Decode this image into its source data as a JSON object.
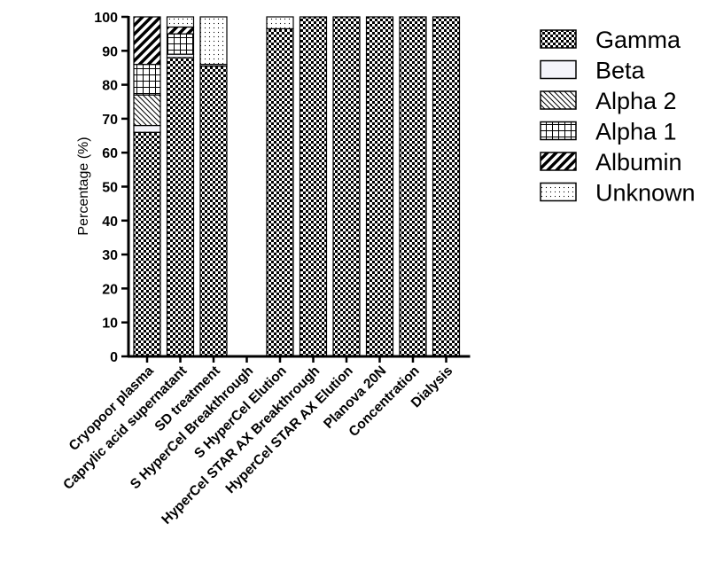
{
  "chart_data": {
    "type": "bar",
    "stacked": true,
    "ylabel": "Percentage (%)",
    "xlabel": "",
    "ylim": [
      0,
      100
    ],
    "yticks": [
      0,
      10,
      20,
      30,
      40,
      50,
      60,
      70,
      80,
      90,
      100
    ],
    "grid": false,
    "legend_position": "right",
    "categories": [
      "Cryopoor plasma",
      "Caprylic acid supernatant",
      "SD treatment",
      "S HyperCel Breakthrough",
      "S HyperCel Elution",
      "HyperCel STAR AX Breakthrough",
      "HyperCel STAR AX Elution",
      "Planova 20N",
      "Concentration",
      "Dialysis"
    ],
    "series": [
      {
        "name": "Gamma",
        "pattern": "checker",
        "values": [
          66,
          88,
          85.5,
          0,
          96.5,
          100,
          100,
          100,
          100,
          100
        ]
      },
      {
        "name": "Beta",
        "pattern": "plain",
        "values": [
          2,
          1,
          0.5,
          0,
          0,
          0,
          0,
          0,
          0,
          0
        ]
      },
      {
        "name": "Alpha 2",
        "pattern": "diag-thin",
        "values": [
          9,
          0,
          0,
          0,
          0,
          0,
          0,
          0,
          0,
          0
        ]
      },
      {
        "name": "Alpha 1",
        "pattern": "grid",
        "values": [
          9,
          6,
          0,
          0,
          0,
          0,
          0,
          0,
          0,
          0
        ]
      },
      {
        "name": "Albumin",
        "pattern": "diag-thick",
        "values": [
          14,
          2,
          0,
          0,
          0,
          0,
          0,
          0,
          0,
          0
        ]
      },
      {
        "name": "Unknown",
        "pattern": "dots",
        "values": [
          0,
          3,
          14,
          0,
          3.5,
          0,
          0,
          0,
          0,
          0
        ]
      }
    ]
  }
}
